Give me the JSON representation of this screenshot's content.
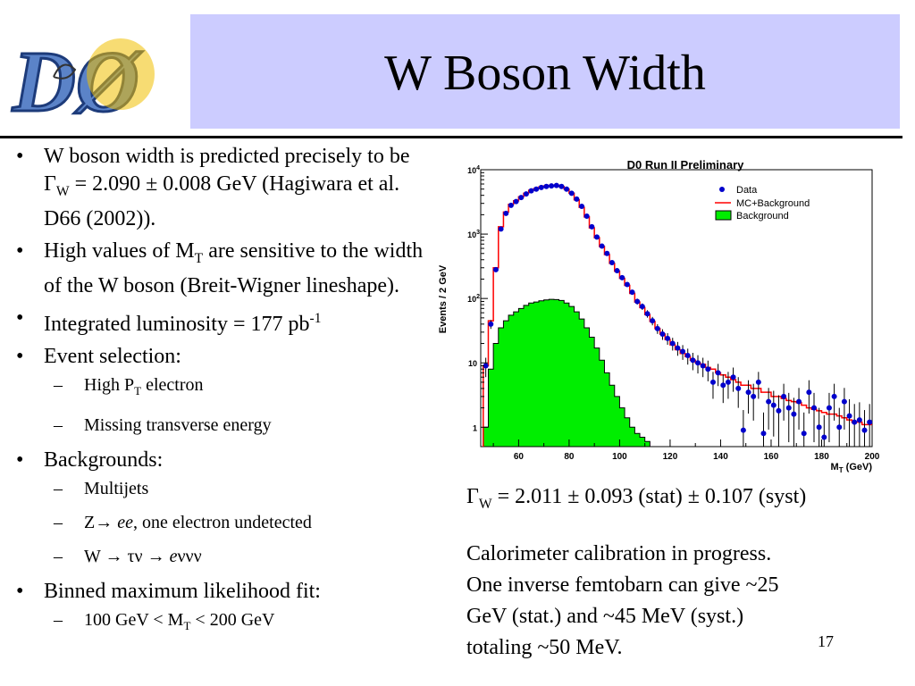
{
  "logo": {
    "text": "DØ"
  },
  "title": "W Boson Width",
  "bullets": {
    "b1": {
      "pre": "W boson width is predicted precisely to be Γ",
      "sub": "W",
      "post": " = 2.090 ± 0.008 GeV (Hagiwara et al. D66 (2002))."
    },
    "b2": {
      "pre": "High values of M",
      "sub": "T",
      "post": " are sensitive to the width of the W boson (Breit-Wigner lineshape)."
    },
    "b3": {
      "pre": "Integrated luminosity = 177 pb",
      "sup": "-1"
    },
    "b4": {
      "text": "Event selection:"
    },
    "b4_s1": {
      "pre": "High P",
      "sub": "T",
      "post": " electron"
    },
    "b4_s2": {
      "text": "Missing transverse energy"
    },
    "b5": {
      "text": "Backgrounds:"
    },
    "b5_s1": {
      "text": "Multijets"
    },
    "b5_s2": {
      "pre": "Z→ ",
      "em": "ee",
      "post": ", one electron undetected"
    },
    "b5_s3": {
      "pre": "W → τν → ",
      "em": "e",
      "post": "ννν"
    },
    "b6": {
      "text": "Binned maximum likelihood fit:"
    },
    "b6_s1": {
      "pre": "100 GeV < M",
      "sub": "T",
      "post": " < 200 GeV"
    }
  },
  "markers": {
    "bullet": "•",
    "dash": "–"
  },
  "result": {
    "pre": "Γ",
    "sub": "W",
    "post": " = 2.011 ± 0.093 (stat) ± 0.107 (syst)"
  },
  "notes": [
    "Calorimeter calibration in progress.",
    "One inverse femtobarn can give ~25",
    "GeV (stat.) and ~45 MeV (syst.)",
    "totaling ~50 MeV."
  ],
  "page_number": "17",
  "chart_data": {
    "type": "line",
    "title": "D0 Run II Preliminary",
    "ylabel": "Events / 2 GeV",
    "xlabel_main": "M",
    "xlabel_sub": "T",
    "xlabel_unit": " (GeV)",
    "xlim": [
      45,
      200
    ],
    "ylim": [
      0.5,
      10000
    ],
    "yscale": "log",
    "x_ticks": [
      60,
      80,
      100,
      120,
      140,
      160,
      180,
      200
    ],
    "x_tick_labels": [
      "60",
      "80",
      "100",
      "120",
      "140",
      "160",
      "180",
      "200"
    ],
    "y_ticks": [
      1,
      10,
      100,
      1000,
      10000
    ],
    "y_tick_labels": [
      {
        "base": "1",
        "exp": ""
      },
      {
        "base": "10",
        "exp": ""
      },
      {
        "base": "10",
        "exp": "2"
      },
      {
        "base": "10",
        "exp": "3"
      },
      {
        "base": "10",
        "exp": "4"
      }
    ],
    "legend_position": "top-right",
    "colors": {
      "data": "#0000cc",
      "mc": "#ff0000",
      "background_fill": "#00ee00",
      "background_edge": "#000000"
    },
    "series": [
      {
        "name": "Data",
        "kind": "points",
        "x": [
          47,
          49,
          51,
          53,
          55,
          57,
          59,
          61,
          63,
          65,
          67,
          69,
          71,
          73,
          75,
          77,
          79,
          81,
          83,
          85,
          87,
          89,
          91,
          93,
          95,
          97,
          99,
          101,
          103,
          105,
          107,
          109,
          111,
          113,
          115,
          117,
          119,
          121,
          123,
          125,
          127,
          129,
          131,
          133,
          135,
          137,
          139,
          141,
          143,
          145,
          147,
          149,
          151,
          153,
          155,
          157,
          159,
          161,
          163,
          165,
          167,
          169,
          171,
          173,
          175,
          177,
          179,
          181,
          183,
          185,
          187,
          189,
          191,
          193,
          195,
          197,
          199
        ],
        "y": [
          9,
          40,
          280,
          1200,
          2100,
          2800,
          3200,
          3700,
          4200,
          4700,
          5000,
          5300,
          5500,
          5600,
          5700,
          5500,
          5000,
          4300,
          3500,
          2700,
          1900,
          1300,
          900,
          650,
          500,
          360,
          270,
          210,
          165,
          125,
          90,
          75,
          58,
          45,
          34,
          28,
          24,
          20,
          17,
          15,
          13,
          11,
          10,
          9,
          8,
          5,
          7,
          4.5,
          5,
          6,
          4,
          0.9,
          3.5,
          3,
          5,
          0.8,
          2.5,
          2.2,
          1.8,
          3,
          2,
          1.6,
          2.5,
          0.8,
          3.5,
          2,
          1,
          0.7,
          2,
          3,
          1,
          2.5,
          1.5,
          1.2,
          1.3,
          0.9,
          1.2
        ],
        "errors": true
      },
      {
        "name": "MC+Background",
        "kind": "step",
        "x": [
          47,
          49,
          51,
          53,
          55,
          57,
          59,
          61,
          63,
          65,
          67,
          69,
          71,
          73,
          75,
          77,
          79,
          81,
          83,
          85,
          87,
          89,
          91,
          93,
          95,
          97,
          99,
          101,
          103,
          105,
          107,
          109,
          111,
          113,
          115,
          117,
          119,
          121,
          123,
          125,
          127,
          129,
          131,
          133,
          135,
          137,
          139,
          141,
          143,
          145,
          147,
          149,
          151,
          153,
          155,
          157,
          159,
          161,
          163,
          165,
          167,
          169,
          171,
          173,
          175,
          177,
          179,
          181,
          183,
          185,
          187,
          189,
          191,
          193,
          195,
          197,
          199
        ],
        "y": [
          9,
          45,
          300,
          1300,
          2200,
          2900,
          3300,
          3800,
          4300,
          4800,
          5100,
          5400,
          5600,
          5700,
          5750,
          5500,
          5000,
          4300,
          3400,
          2600,
          1850,
          1250,
          880,
          640,
          480,
          350,
          265,
          205,
          160,
          120,
          88,
          72,
          56,
          44,
          34,
          28,
          23,
          19,
          16,
          14,
          12.5,
          11,
          10,
          9.5,
          8.5,
          8,
          7,
          6.5,
          6,
          5.5,
          5,
          4.5,
          4.5,
          4,
          4,
          3.5,
          3.5,
          3,
          3,
          2.8,
          2.6,
          2.5,
          2.4,
          2.2,
          2,
          1.9,
          1.8,
          1.7,
          1.6,
          1.6,
          1.5,
          1.4,
          1.3,
          1.2,
          1.2,
          1.1,
          1.1
        ]
      },
      {
        "name": "Background",
        "kind": "filled-step",
        "x": [
          47,
          49,
          51,
          53,
          55,
          57,
          59,
          61,
          63,
          65,
          67,
          69,
          71,
          73,
          75,
          77,
          79,
          81,
          83,
          85,
          87,
          89,
          91,
          93,
          95,
          97,
          99,
          101,
          103,
          105,
          107,
          109,
          111,
          113,
          115,
          117,
          119
        ],
        "y": [
          1,
          8,
          20,
          35,
          45,
          55,
          62,
          70,
          78,
          85,
          88,
          92,
          95,
          97,
          96,
          93,
          85,
          75,
          62,
          48,
          35,
          25,
          17,
          11,
          7,
          4.5,
          3,
          2,
          1.4,
          1,
          0.8,
          0.7,
          0.6,
          0.5,
          0.5,
          0.5,
          0.5
        ]
      }
    ]
  }
}
